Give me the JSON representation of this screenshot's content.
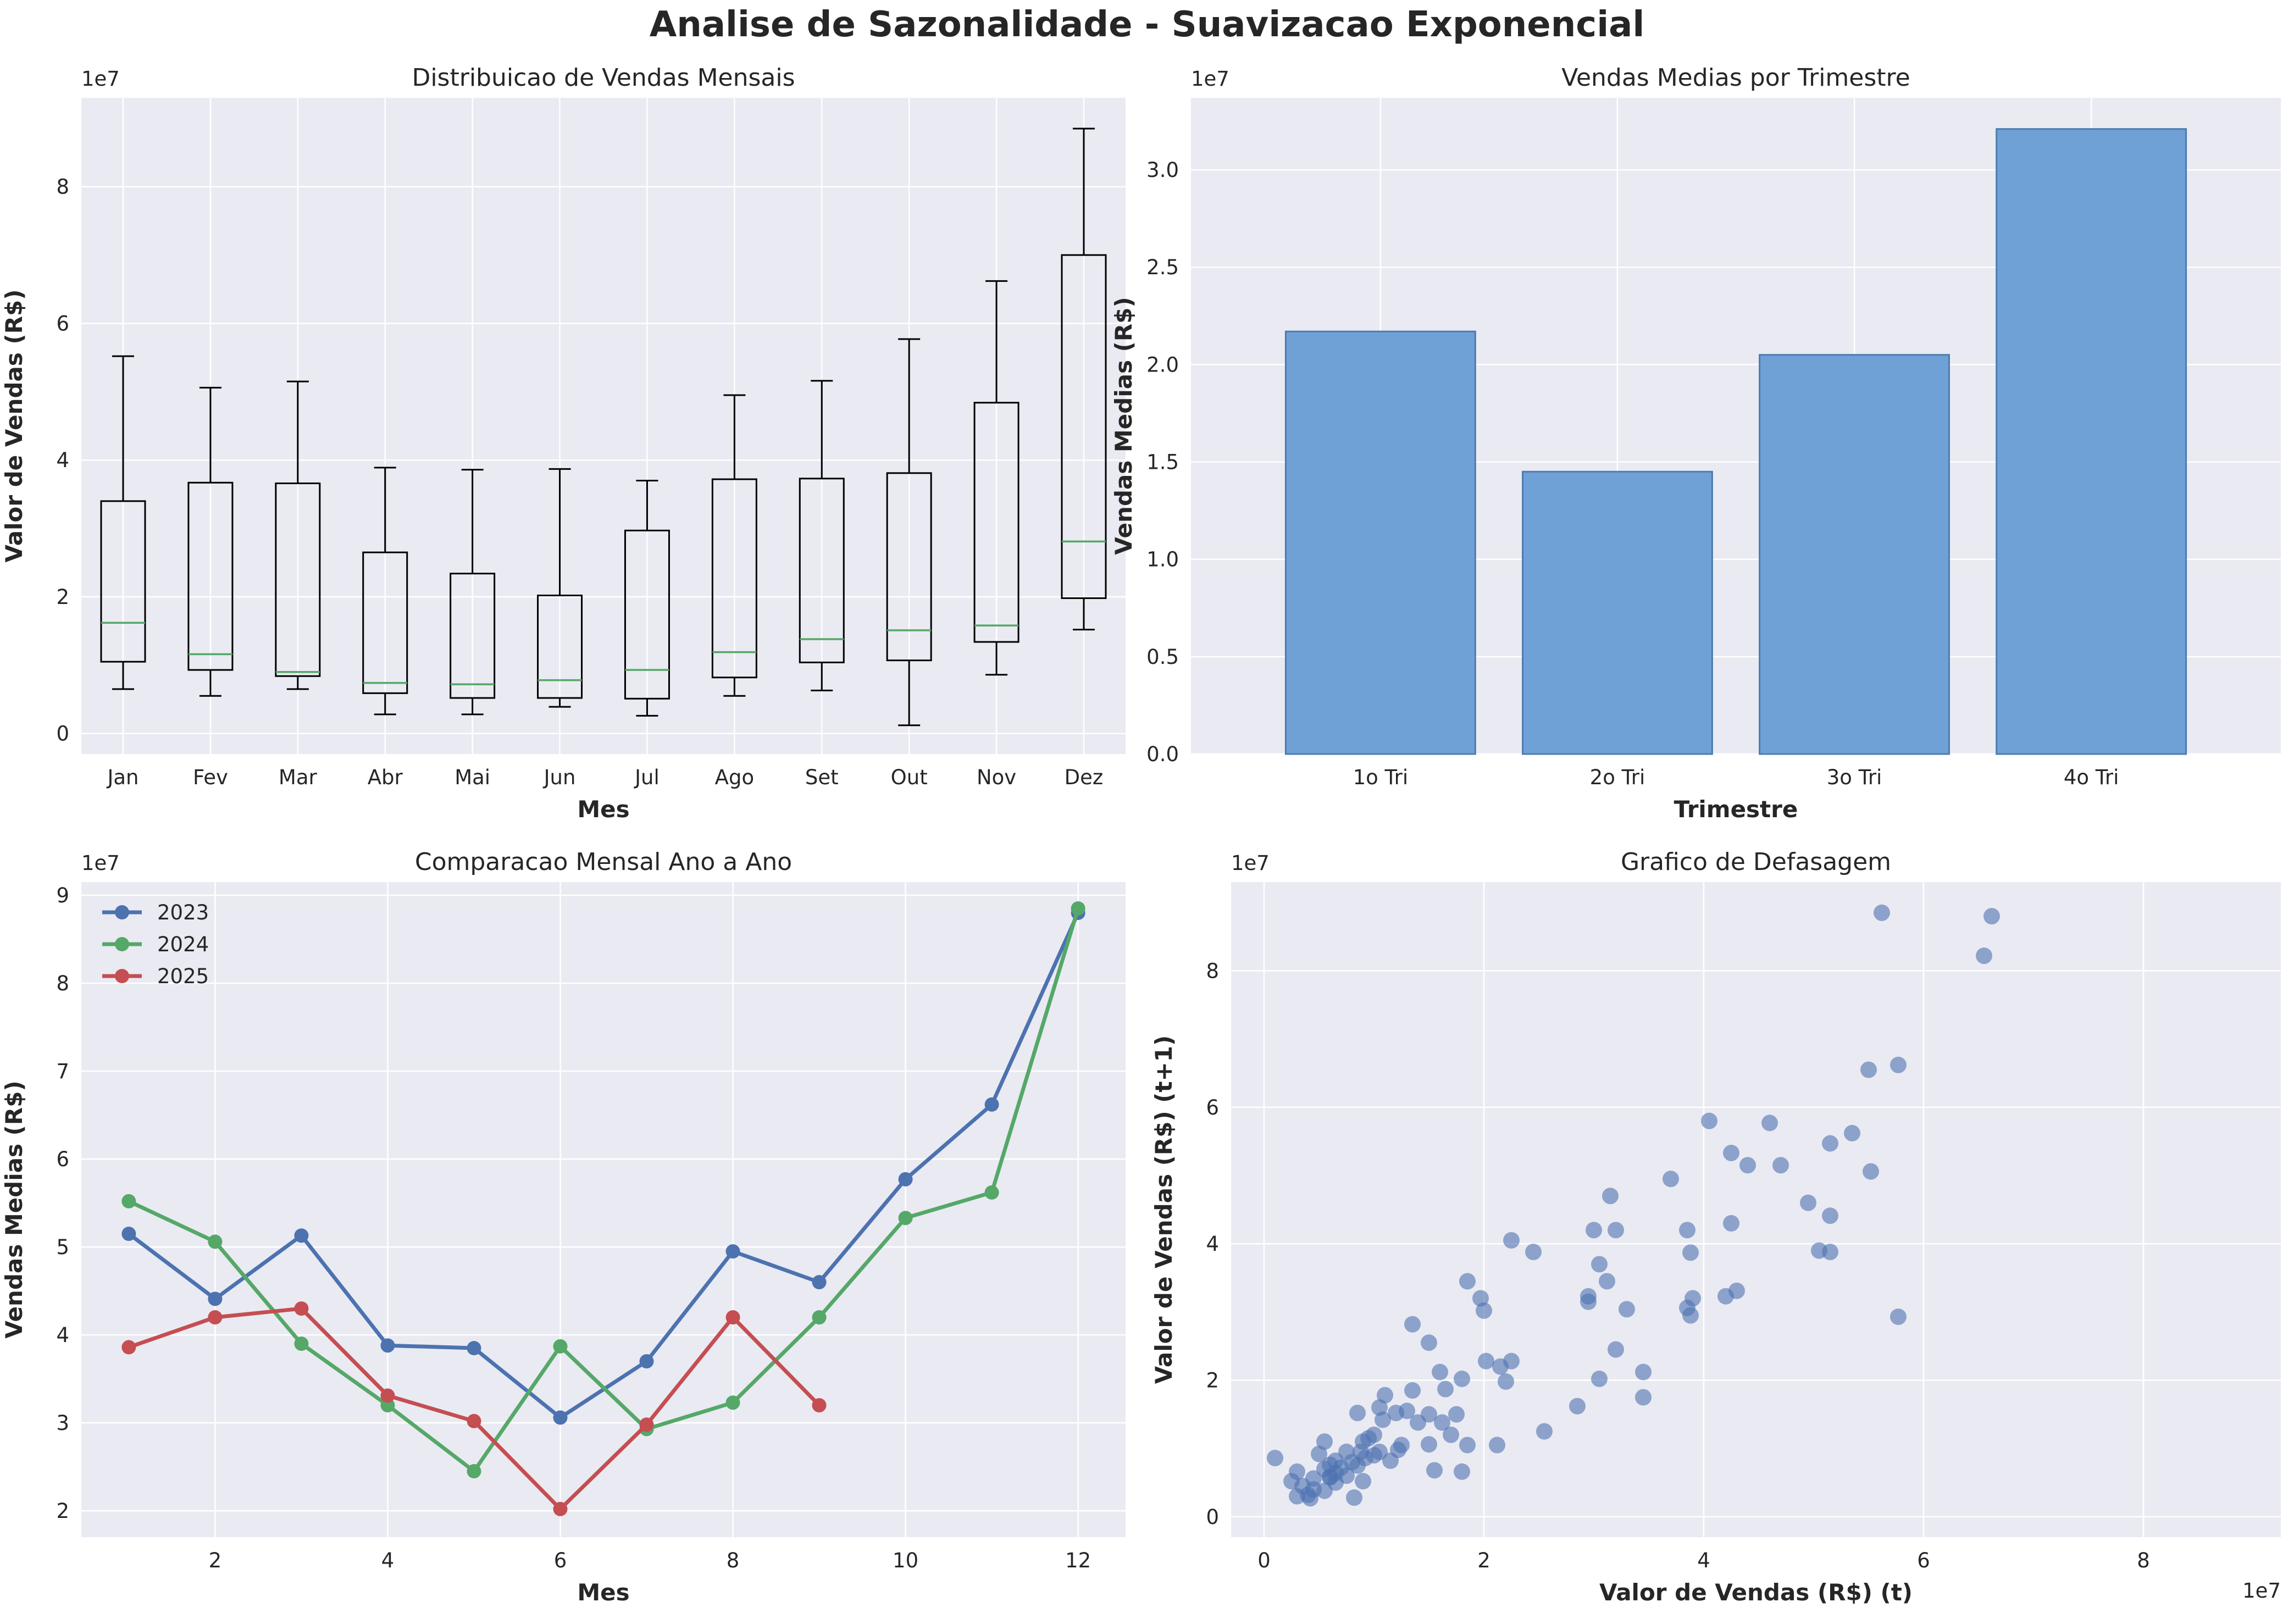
{
  "figure_title": "Analise de Sazonalidade - Suavizacao Exponencial",
  "colors": {
    "axes_bg": "#EAEAF2",
    "grid": "#FFFFFF",
    "box_line": "#000000",
    "median": "#55A868",
    "bar_fill": "#6FA1D7",
    "bar_edge": "#4C7CB0",
    "scatter": "#4C72B0"
  },
  "chart_data": [
    {
      "type": "box",
      "title": "Distribuicao de Vendas Mensais",
      "xlabel": "Mes",
      "ylabel": "Valor de Vendas (R$)",
      "y_multiplier": "1e7",
      "ylim": [
        -0.3,
        9.3
      ],
      "yticks": [
        0,
        2,
        4,
        6,
        8
      ],
      "categories": [
        "Jan",
        "Fev",
        "Mar",
        "Abr",
        "Mai",
        "Jun",
        "Jul",
        "Ago",
        "Set",
        "Out",
        "Nov",
        "Dez"
      ],
      "boxes": [
        {
          "whislo": 0.65,
          "q1": 1.05,
          "med": 1.62,
          "q3": 3.4,
          "whishi": 5.52
        },
        {
          "whislo": 0.55,
          "q1": 0.93,
          "med": 1.16,
          "q3": 3.67,
          "whishi": 5.06
        },
        {
          "whislo": 0.65,
          "q1": 0.84,
          "med": 0.9,
          "q3": 3.66,
          "whishi": 5.15
        },
        {
          "whislo": 0.28,
          "q1": 0.59,
          "med": 0.74,
          "q3": 2.65,
          "whishi": 3.89
        },
        {
          "whislo": 0.28,
          "q1": 0.52,
          "med": 0.72,
          "q3": 2.34,
          "whishi": 3.86
        },
        {
          "whislo": 0.39,
          "q1": 0.52,
          "med": 0.78,
          "q3": 2.02,
          "whishi": 3.87
        },
        {
          "whislo": 0.26,
          "q1": 0.51,
          "med": 0.93,
          "q3": 2.97,
          "whishi": 3.7
        },
        {
          "whislo": 0.55,
          "q1": 0.82,
          "med": 1.19,
          "q3": 3.72,
          "whishi": 4.95
        },
        {
          "whislo": 0.63,
          "q1": 1.04,
          "med": 1.38,
          "q3": 3.73,
          "whishi": 5.16
        },
        {
          "whislo": 0.12,
          "q1": 1.07,
          "med": 1.51,
          "q3": 3.81,
          "whishi": 5.77
        },
        {
          "whislo": 0.86,
          "q1": 1.34,
          "med": 1.58,
          "q3": 4.84,
          "whishi": 6.62
        },
        {
          "whislo": 1.52,
          "q1": 1.98,
          "med": 2.81,
          "q3": 7.0,
          "whishi": 8.85
        }
      ]
    },
    {
      "type": "bar",
      "title": "Vendas Medias por Trimestre",
      "xlabel": "Trimestre",
      "ylabel": "Vendas Medias (R$)",
      "y_multiplier": "1e7",
      "ylim": [
        0,
        3.37
      ],
      "yticks": [
        "0.0",
        "0.5",
        "1.0",
        "1.5",
        "2.0",
        "2.5",
        "3.0"
      ],
      "categories": [
        "1o Tri",
        "2o Tri",
        "3o Tri",
        "4o Tri"
      ],
      "values": [
        2.17,
        1.45,
        2.05,
        3.21
      ]
    },
    {
      "type": "line",
      "title": "Comparacao Mensal Ano a Ano",
      "xlabel": "Mes",
      "ylabel": "Vendas Medias (R$)",
      "y_multiplier": "1e7",
      "xlim": [
        0.45,
        12.55
      ],
      "ylim": [
        1.7,
        9.15
      ],
      "xticks": [
        2,
        4,
        6,
        8,
        10,
        12
      ],
      "yticks": [
        2,
        3,
        4,
        5,
        6,
        7,
        8,
        9
      ],
      "legend_position": "top-left",
      "series": [
        {
          "name": "2023",
          "color": "#4C72B0",
          "x": [
            1,
            2,
            3,
            4,
            5,
            6,
            7,
            8,
            9,
            10,
            11,
            12
          ],
          "values": [
            5.15,
            4.41,
            5.13,
            3.88,
            3.85,
            3.06,
            3.7,
            4.95,
            4.6,
            5.77,
            6.62,
            8.8
          ]
        },
        {
          "name": "2024",
          "color": "#55A868",
          "x": [
            1,
            2,
            3,
            4,
            5,
            6,
            7,
            8,
            9,
            10,
            11,
            12
          ],
          "values": [
            5.52,
            5.06,
            3.9,
            3.2,
            2.45,
            3.87,
            2.93,
            3.23,
            4.2,
            5.33,
            5.62,
            8.85
          ]
        },
        {
          "name": "2025",
          "color": "#C44E52",
          "x": [
            1,
            2,
            3,
            4,
            5,
            6,
            7,
            8,
            9
          ],
          "values": [
            3.86,
            4.2,
            4.3,
            3.31,
            3.02,
            2.02,
            2.98,
            4.2,
            3.2
          ]
        }
      ]
    },
    {
      "type": "scatter",
      "title": "Grafico de Defasagem",
      "xlabel": "Valor de Vendas (R$) (t)",
      "ylabel": "Valor de Vendas (R$) (t+1)",
      "x_multiplier": "1e7",
      "y_multiplier": "1e7",
      "xlim": [
        -0.3,
        9.25
      ],
      "ylim": [
        -0.3,
        9.3
      ],
      "xticks": [
        0,
        2,
        4,
        6,
        8
      ],
      "yticks": [
        0,
        2,
        4,
        6,
        8
      ],
      "points": [
        [
          5.62,
          8.85
        ],
        [
          6.62,
          8.8
        ],
        [
          6.55,
          8.22
        ],
        [
          5.77,
          6.62
        ],
        [
          5.5,
          6.55
        ],
        [
          4.05,
          5.8
        ],
        [
          4.6,
          5.77
        ],
        [
          5.35,
          5.62
        ],
        [
          5.15,
          5.47
        ],
        [
          4.25,
          5.33
        ],
        [
          4.4,
          5.15
        ],
        [
          4.7,
          5.15
        ],
        [
          5.52,
          5.06
        ],
        [
          3.7,
          4.95
        ],
        [
          3.15,
          4.7
        ],
        [
          4.95,
          4.6
        ],
        [
          5.15,
          4.41
        ],
        [
          4.25,
          4.3
        ],
        [
          3.0,
          4.2
        ],
        [
          3.2,
          4.2
        ],
        [
          3.85,
          4.2
        ],
        [
          2.25,
          4.05
        ],
        [
          5.05,
          3.9
        ],
        [
          5.15,
          3.88
        ],
        [
          3.88,
          3.87
        ],
        [
          2.45,
          3.88
        ],
        [
          3.05,
          3.7
        ],
        [
          3.12,
          3.45
        ],
        [
          1.85,
          3.45
        ],
        [
          4.3,
          3.31
        ],
        [
          3.9,
          3.2
        ],
        [
          4.2,
          3.23
        ],
        [
          2.95,
          3.23
        ],
        [
          1.97,
          3.2
        ],
        [
          2.95,
          3.15
        ],
        [
          3.3,
          3.04
        ],
        [
          2.0,
          3.02
        ],
        [
          3.85,
          3.06
        ],
        [
          3.88,
          2.95
        ],
        [
          5.77,
          2.93
        ],
        [
          1.35,
          2.82
        ],
        [
          1.5,
          2.55
        ],
        [
          3.2,
          2.45
        ],
        [
          2.25,
          2.28
        ],
        [
          2.02,
          2.28
        ],
        [
          2.15,
          2.2
        ],
        [
          1.6,
          2.12
        ],
        [
          3.45,
          2.12
        ],
        [
          3.05,
          2.02
        ],
        [
          1.8,
          2.02
        ],
        [
          2.2,
          1.98
        ],
        [
          1.65,
          1.87
        ],
        [
          1.35,
          1.85
        ],
        [
          3.45,
          1.75
        ],
        [
          1.1,
          1.78
        ],
        [
          2.85,
          1.62
        ],
        [
          1.05,
          1.6
        ],
        [
          1.3,
          1.55
        ],
        [
          1.5,
          1.5
        ],
        [
          1.75,
          1.5
        ],
        [
          0.85,
          1.52
        ],
        [
          1.2,
          1.52
        ],
        [
          1.62,
          1.38
        ],
        [
          1.4,
          1.38
        ],
        [
          1.08,
          1.42
        ],
        [
          2.55,
          1.25
        ],
        [
          1.7,
          1.2
        ],
        [
          1.0,
          1.2
        ],
        [
          0.95,
          1.15
        ],
        [
          0.9,
          1.1
        ],
        [
          0.55,
          1.1
        ],
        [
          1.25,
          1.05
        ],
        [
          1.85,
          1.05
        ],
        [
          2.12,
          1.05
        ],
        [
          1.5,
          1.06
        ],
        [
          1.22,
          0.98
        ],
        [
          1.05,
          0.95
        ],
        [
          0.88,
          0.95
        ],
        [
          0.75,
          0.95
        ],
        [
          0.5,
          0.92
        ],
        [
          1.0,
          0.9
        ],
        [
          0.92,
          0.86
        ],
        [
          0.65,
          0.82
        ],
        [
          0.1,
          0.86
        ],
        [
          1.15,
          0.82
        ],
        [
          0.8,
          0.8
        ],
        [
          0.6,
          0.76
        ],
        [
          0.85,
          0.75
        ],
        [
          0.7,
          0.72
        ],
        [
          0.55,
          0.7
        ],
        [
          0.3,
          0.66
        ],
        [
          1.55,
          0.68
        ],
        [
          1.8,
          0.66
        ],
        [
          0.65,
          0.64
        ],
        [
          0.75,
          0.6
        ],
        [
          0.6,
          0.58
        ],
        [
          0.45,
          0.56
        ],
        [
          0.25,
          0.52
        ],
        [
          0.9,
          0.52
        ],
        [
          0.65,
          0.5
        ],
        [
          0.35,
          0.45
        ],
        [
          0.45,
          0.4
        ],
        [
          0.55,
          0.38
        ],
        [
          0.4,
          0.32
        ],
        [
          0.3,
          0.3
        ],
        [
          0.82,
          0.28
        ],
        [
          0.42,
          0.27
        ],
        [
          0.6,
          0.58
        ]
      ]
    }
  ]
}
